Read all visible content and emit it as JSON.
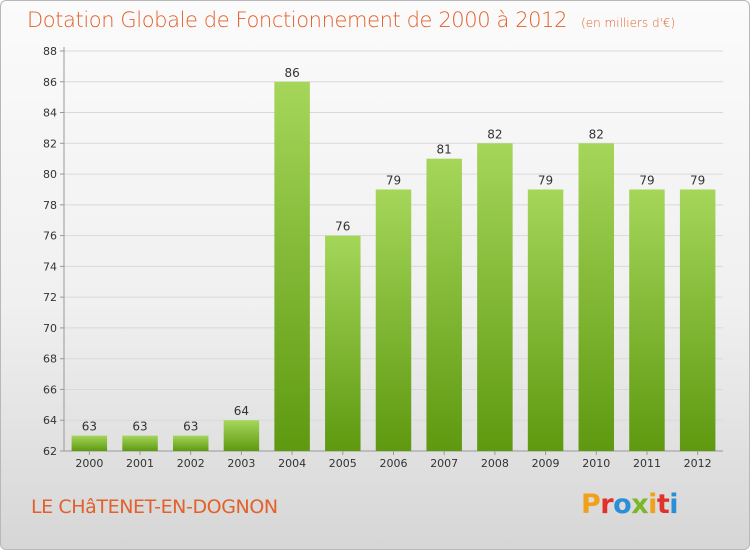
{
  "header": {
    "title": "Dotation Globale de Fonctionnement de 2000 à 2012",
    "unit": "(en milliers d'€)"
  },
  "footer": {
    "commune": "LE CHâTENET-EN-DOGNON",
    "brand": "Proxiti",
    "brand_colors": [
      "#f0a019",
      "#e0312b",
      "#2a8fd6",
      "#7ab82a",
      "#f0a019",
      "#e0312b",
      "#2a8fd6"
    ]
  },
  "colors": {
    "accent": "#e2602a",
    "bar_light": "#a2d456",
    "bar_dark": "#5f9a10",
    "axis": "#999999",
    "grid": "#d9d9d9"
  },
  "chart_data": {
    "type": "bar",
    "categories": [
      "2000",
      "2001",
      "2002",
      "2003",
      "2004",
      "2005",
      "2006",
      "2007",
      "2008",
      "2009",
      "2010",
      "2011",
      "2012"
    ],
    "values": [
      63,
      63,
      63,
      64,
      86,
      76,
      79,
      81,
      82,
      79,
      82,
      79,
      79
    ],
    "ylim": [
      62,
      88
    ],
    "yticks": [
      62,
      64,
      66,
      68,
      70,
      72,
      74,
      76,
      78,
      80,
      82,
      84,
      86,
      88
    ],
    "grid": true,
    "data_labels": true
  }
}
